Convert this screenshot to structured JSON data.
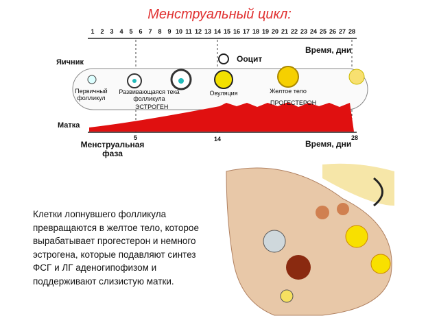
{
  "title": "Менструальный цикл:",
  "timeline": {
    "days": [
      1,
      2,
      3,
      4,
      5,
      6,
      7,
      8,
      9,
      10,
      11,
      12,
      13,
      14,
      15,
      16,
      17,
      18,
      19,
      20,
      21,
      22,
      23,
      24,
      25,
      26,
      27,
      28
    ],
    "axis_label": "Время, дни"
  },
  "ovary": {
    "label": "Яичник",
    "oocyte": "Ооцит",
    "stages": [
      "Первичный фолликул",
      "Развивающаяся тека фолликула",
      "Овуляция",
      "Желтое тело"
    ]
  },
  "hormones": [
    "ЭСТРОГЕН",
    "ПРОГЕСТЕРОН"
  ],
  "uterus": {
    "label": "Матка",
    "day_marks": [
      5,
      14,
      28
    ],
    "axis_label": "Время, дни",
    "phase": "Менструальная фаза"
  },
  "caption_lines": [
    "Клетки лопнувшего фолликула",
    "превращаются в желтое тело, которое",
    "вырабатывает прогестерон и немного",
    "эстрогена, которые подавляют синтез",
    "ФСГ и ЛГ аденогипофизом и",
    "поддерживают слизистую матки."
  ]
}
